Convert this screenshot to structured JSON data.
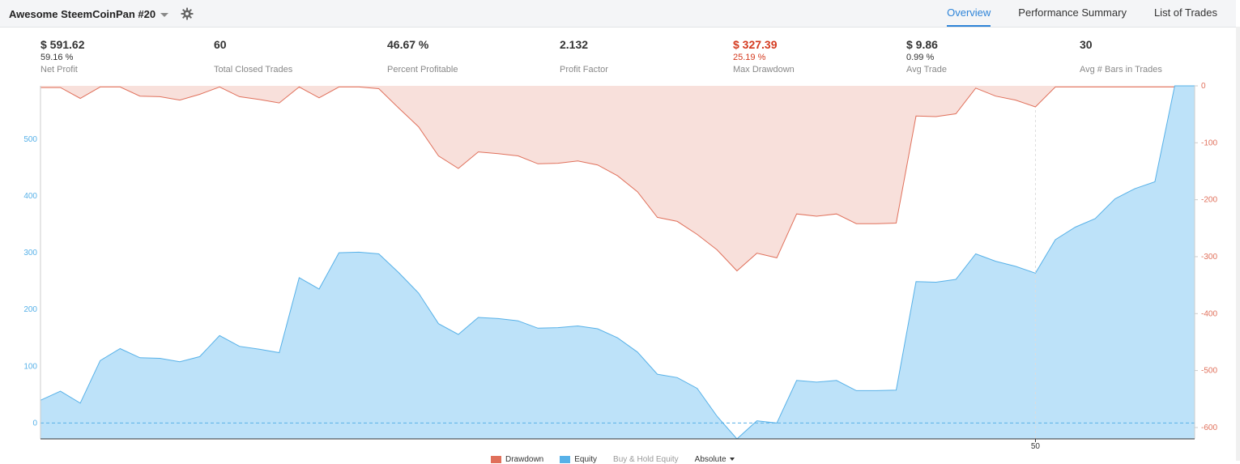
{
  "header": {
    "strategy_name": "Awesome SteemCoinPan #20",
    "tabs": [
      {
        "label": "Overview",
        "active": true
      },
      {
        "label": "Performance Summary",
        "active": false
      },
      {
        "label": "List of Trades",
        "active": false
      }
    ]
  },
  "metrics": [
    {
      "value": "$ 591.62",
      "sub": "59.16 %",
      "label": "Net Profit"
    },
    {
      "value": "60",
      "sub": "",
      "label": "Total Closed Trades"
    },
    {
      "value": "46.67 %",
      "sub": "",
      "label": "Percent Profitable"
    },
    {
      "value": "2.132",
      "sub": "",
      "label": "Profit Factor"
    },
    {
      "value": "$ 327.39",
      "sub": "25.19 %",
      "label": "Max Drawdown",
      "negative": true
    },
    {
      "value": "$ 9.86",
      "sub": "0.99 %",
      "label": "Avg Trade"
    },
    {
      "value": "30",
      "sub": "",
      "label": "Avg # Bars in Trades"
    }
  ],
  "legend": {
    "drawdown": "Drawdown",
    "equity": "Equity",
    "buy_hold": "Buy & Hold Equity",
    "mode": "Absolute"
  },
  "colors": {
    "accent": "#2e84d8",
    "equity_fill": "#bde2f9",
    "equity_line": "#57b1e8",
    "drawdown_fill": "#f8e0db",
    "drawdown_line": "#e0705b",
    "negative": "#d43a1f"
  },
  "chart_data": {
    "type": "area",
    "x_ticks": [
      50
    ],
    "left_axis": {
      "ticks": [
        0,
        100,
        200,
        300,
        400,
        500
      ],
      "range": [
        -28,
        594
      ]
    },
    "right_axis": {
      "ticks": [
        0,
        -100,
        -200,
        -300,
        -400,
        -500,
        -600
      ],
      "range": [
        -620,
        0
      ]
    },
    "series": [
      {
        "name": "Equity",
        "axis": "left",
        "values": [
          40,
          56,
          35,
          110,
          131,
          115,
          114,
          108,
          117,
          154,
          135,
          130,
          124,
          256,
          236,
          300,
          301,
          298,
          265,
          229,
          175,
          156,
          186,
          184,
          180,
          167,
          168,
          171,
          166,
          150,
          125,
          86,
          80,
          61,
          12,
          -28,
          4,
          0,
          75,
          72,
          75,
          57,
          57,
          58,
          249,
          248,
          253,
          298,
          285,
          276,
          264,
          323,
          345,
          360,
          395,
          413,
          425,
          594,
          594
        ]
      },
      {
        "name": "Drawdown",
        "axis": "right",
        "values": [
          -3,
          -3,
          -22,
          -2,
          -2,
          -18,
          -19,
          -25,
          -15,
          -2,
          -19,
          -24,
          -30,
          -2,
          -21,
          -2,
          -2,
          -5,
          -39,
          -72,
          -123,
          -145,
          -116,
          -119,
          -123,
          -137,
          -136,
          -132,
          -139,
          -158,
          -186,
          -231,
          -238,
          -261,
          -288,
          -325,
          -294,
          -302,
          -225,
          -229,
          -225,
          -242,
          -242,
          -241,
          -53,
          -54,
          -49,
          -4,
          -18,
          -25,
          -37,
          -2,
          -2,
          -2,
          -2,
          -2,
          -2,
          -2,
          -2
        ]
      }
    ]
  }
}
